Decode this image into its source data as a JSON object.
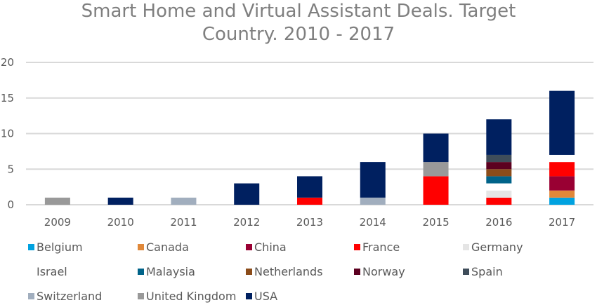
{
  "chart_data": {
    "type": "bar",
    "stacked": true,
    "title": "Smart Home and Virtual Assistant Deals. Target Country. 2010 - 2017",
    "title_lines": [
      "Smart Home and Virtual Assistant Deals. Target",
      "Country. 2010 - 2017"
    ],
    "categories": [
      "2009",
      "2010",
      "2011",
      "2012",
      "2013",
      "2014",
      "2015",
      "2016",
      "2017"
    ],
    "ylim": [
      0,
      20
    ],
    "yticks": [
      0,
      5,
      10,
      15,
      20
    ],
    "grid": true,
    "legend_position": "bottom",
    "series": [
      {
        "name": "Belgium",
        "color": "#00A2E0",
        "values": [
          0,
          0,
          0,
          0,
          0,
          0,
          0,
          0,
          1
        ]
      },
      {
        "name": "Canada",
        "color": "#E0883A",
        "values": [
          0,
          0,
          0,
          0,
          0,
          0,
          0,
          0,
          1
        ]
      },
      {
        "name": "China",
        "color": "#990033",
        "values": [
          0,
          0,
          0,
          0,
          0,
          0,
          0,
          0,
          2
        ]
      },
      {
        "name": "France",
        "color": "#FF0000",
        "values": [
          0,
          0,
          0,
          0,
          1,
          0,
          4,
          1,
          2
        ]
      },
      {
        "name": "Germany",
        "color": "#E5E5E5",
        "values": [
          0,
          0,
          0,
          0,
          0,
          0,
          0,
          1,
          0
        ]
      },
      {
        "name": "Israel",
        "color": "#FFFFFF",
        "values": [
          0,
          0,
          0,
          0,
          0,
          0,
          0,
          1,
          1
        ]
      },
      {
        "name": "Malaysia",
        "color": "#006389",
        "values": [
          0,
          0,
          0,
          0,
          0,
          0,
          0,
          1,
          0
        ]
      },
      {
        "name": "Netherlands",
        "color": "#8B4C1A",
        "values": [
          0,
          0,
          0,
          0,
          0,
          0,
          0,
          1,
          0
        ]
      },
      {
        "name": "Norway",
        "color": "#5C0020",
        "values": [
          0,
          0,
          0,
          0,
          0,
          0,
          0,
          1,
          0
        ]
      },
      {
        "name": "Spain",
        "color": "#3F4D5A",
        "values": [
          0,
          0,
          0,
          0,
          0,
          0,
          0,
          1,
          0
        ]
      },
      {
        "name": "Switzerland",
        "color": "#A1AEBE",
        "values": [
          0,
          0,
          1,
          0,
          0,
          1,
          0,
          0,
          0
        ]
      },
      {
        "name": "United Kingdom",
        "color": "#999999",
        "values": [
          1,
          0,
          0,
          0,
          0,
          0,
          2,
          0,
          0
        ]
      },
      {
        "name": "USA",
        "color": "#002060",
        "values": [
          0,
          1,
          0,
          3,
          3,
          5,
          4,
          5,
          9
        ]
      }
    ]
  }
}
